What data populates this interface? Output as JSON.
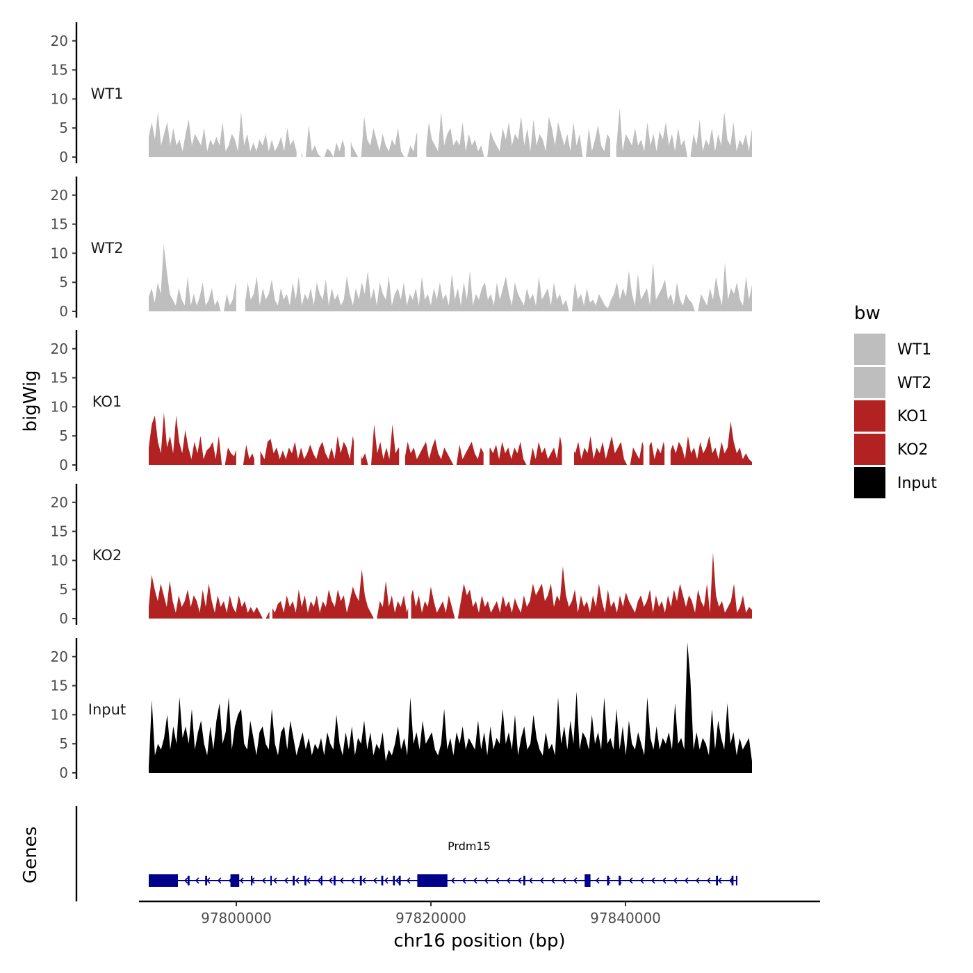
{
  "chart_data": {
    "type": "area",
    "title": "",
    "xlabel": "chr16 position (bp)",
    "ylabel": "bigWig",
    "gene_track_label": "Genes",
    "xlim": [
      97790000,
      97860000
    ],
    "x_ticks": [
      97800000,
      97820000,
      97840000
    ],
    "x_tick_labels": [
      "97800000",
      "97820000",
      "97840000"
    ],
    "ylim": [
      0,
      23
    ],
    "y_ticks": [
      0,
      5,
      10,
      15,
      20
    ],
    "y_tick_labels": [
      "0",
      "5",
      "10",
      "15",
      "20"
    ],
    "data_x_range": [
      97791000,
      97853000
    ],
    "legend": {
      "title": "bw",
      "position": "right",
      "entries": [
        {
          "label": "WT1",
          "color": "#bebebe"
        },
        {
          "label": "WT2",
          "color": "#bebebe"
        },
        {
          "label": "KO1",
          "color": "#b22222"
        },
        {
          "label": "KO2",
          "color": "#b22222"
        },
        {
          "label": "Input",
          "color": "#000000"
        }
      ]
    },
    "series": [
      {
        "name": "WT1",
        "color": "#bebebe",
        "values": [
          3.5,
          6,
          3,
          7.8,
          2,
          4,
          6,
          2,
          5,
          2,
          3,
          1,
          4,
          6.5,
          2,
          4,
          3,
          2,
          5,
          1,
          3,
          2,
          3.5,
          2,
          6,
          1,
          2,
          4,
          3,
          1,
          7.8,
          2,
          4,
          1,
          2.5,
          1,
          3,
          2,
          4,
          1,
          3,
          1,
          2,
          3.5,
          1,
          5,
          2,
          3,
          1,
          2,
          0,
          0,
          5.5,
          1,
          2,
          0.5,
          0,
          0,
          1.5,
          1,
          0,
          2.5,
          1,
          3,
          1,
          4,
          2,
          1,
          0,
          0,
          7,
          3,
          2,
          5,
          3,
          1,
          4,
          2,
          1,
          3,
          2,
          5,
          1,
          0,
          0,
          2,
          1,
          4,
          5,
          3,
          1,
          6,
          3,
          2,
          1,
          7.8,
          2,
          4,
          5,
          2,
          3,
          2,
          6,
          1,
          4,
          2,
          3,
          1,
          2,
          0,
          0,
          4.5,
          3,
          2,
          1,
          5,
          3,
          6,
          2,
          4,
          3,
          7,
          2,
          5,
          1,
          6.5,
          2,
          4,
          3,
          1,
          7,
          5,
          2,
          6,
          4,
          2,
          4,
          1,
          6,
          2,
          4,
          0,
          0,
          5,
          1,
          3,
          5.5,
          2,
          1,
          4,
          3,
          6,
          2,
          8.5,
          1,
          4,
          3,
          2,
          5,
          2,
          3,
          1,
          6,
          2,
          4,
          1,
          4.5,
          3,
          6,
          2,
          4,
          1,
          5,
          2,
          3,
          0,
          0,
          4,
          2,
          6.5,
          1,
          3,
          2,
          5,
          1,
          4,
          2,
          7.8,
          3,
          2,
          6,
          1,
          3,
          2,
          4,
          1,
          5
        ],
        "gaps": [
          [
            0.245,
            0.253
          ],
          [
            0.325,
            0.335
          ],
          [
            0.445,
            0.46
          ],
          [
            0.765,
            0.775
          ]
        ]
      },
      {
        "name": "WT2",
        "color": "#bebebe",
        "values": [
          2.5,
          4,
          1.5,
          5,
          3,
          11.5,
          7,
          3,
          2,
          1,
          4,
          2,
          1,
          6,
          1,
          3,
          1,
          2.5,
          5,
          1,
          2,
          4,
          1,
          2,
          0,
          0,
          3,
          1,
          2,
          5,
          2,
          4,
          1,
          5,
          2,
          3,
          6,
          1,
          4,
          2,
          3,
          5.5,
          2,
          1,
          4,
          2,
          3,
          1,
          5,
          2,
          6,
          1,
          3,
          2,
          4,
          1,
          5,
          3,
          2,
          5.5,
          1,
          4,
          2,
          3,
          1,
          2,
          6,
          3,
          1,
          4,
          2,
          5,
          3,
          7,
          2,
          4,
          1,
          5,
          3,
          2,
          6,
          1,
          3,
          4,
          2,
          5,
          1,
          3,
          2,
          4,
          1,
          6,
          2,
          3,
          1,
          4,
          2,
          5,
          2,
          3,
          1,
          6.5,
          2,
          4,
          1,
          5,
          2,
          7,
          1,
          3,
          2,
          4,
          5,
          2,
          3,
          1,
          5,
          2,
          4,
          6,
          3,
          1,
          5,
          3,
          2,
          1,
          4,
          2,
          3,
          1,
          6,
          2,
          3,
          4,
          1,
          5,
          2,
          3,
          1,
          2,
          0,
          0,
          5,
          2,
          3,
          1,
          4,
          1.5,
          2,
          1,
          3,
          2,
          1,
          0.5,
          2,
          3,
          5,
          2,
          4,
          2.5,
          7,
          3,
          1,
          6.5,
          2,
          3,
          4,
          1,
          8.5,
          2,
          3,
          4,
          5.5,
          2,
          3,
          1,
          5,
          2,
          1,
          3,
          2,
          1.5,
          0,
          0,
          3,
          2,
          1,
          4,
          2,
          6,
          3,
          1,
          8.5,
          2,
          4,
          3,
          5,
          2,
          1,
          6,
          2,
          4.5
        ],
        "gaps": [
          [
            0.145,
            0.16
          ]
        ]
      },
      {
        "name": "KO1",
        "color": "#b22222",
        "values": [
          3,
          7,
          8.5,
          4,
          2,
          9,
          3,
          5,
          2,
          8.5,
          4,
          2,
          6,
          3,
          1,
          4,
          2,
          5,
          1,
          2.5,
          3,
          4,
          1,
          5,
          0,
          0,
          3,
          2,
          1.5,
          3,
          0,
          0,
          3.5,
          1,
          2,
          0.5,
          3,
          2,
          1,
          4,
          4.5,
          2,
          3,
          1,
          2.5,
          1,
          3,
          2,
          4,
          1,
          3,
          1,
          2,
          3.5,
          2,
          1,
          3,
          4,
          2,
          1,
          3,
          1,
          5,
          2,
          4,
          3,
          1,
          5,
          2,
          3,
          1,
          2,
          0,
          0,
          7,
          2,
          4,
          1,
          3,
          1,
          7,
          2,
          3,
          2,
          1,
          4,
          2,
          3,
          1,
          2,
          3,
          4,
          1,
          3,
          4.5,
          2,
          1,
          3,
          2,
          1,
          0,
          0,
          3.5,
          1,
          2,
          3,
          4,
          2,
          1,
          3,
          2,
          1,
          3,
          2,
          3.5,
          1,
          4,
          2,
          3,
          1,
          3,
          2,
          4,
          1,
          0,
          0,
          3,
          1,
          4,
          2,
          3,
          1,
          2,
          3,
          1,
          5,
          2,
          4,
          1,
          3,
          2,
          4,
          1,
          3,
          2,
          5,
          1,
          3,
          2,
          4,
          1,
          3,
          5,
          2,
          3,
          4,
          1,
          0,
          0,
          3,
          2,
          1,
          4,
          2,
          3,
          4,
          1,
          3,
          2,
          4,
          1,
          2,
          3.5,
          2,
          4,
          3,
          1,
          5,
          2,
          3,
          1,
          4,
          2,
          3,
          5,
          2,
          3,
          1,
          4,
          2,
          3,
          7.5,
          4,
          2,
          3,
          1,
          2,
          1,
          0.5
        ],
        "gaps": [
          [
            0.145,
            0.155
          ],
          [
            0.175,
            0.185
          ],
          [
            0.34,
            0.352
          ],
          [
            0.415,
            0.425
          ],
          [
            0.555,
            0.565
          ],
          [
            0.685,
            0.705
          ],
          [
            0.82,
            0.83
          ],
          [
            0.855,
            0.865
          ]
        ]
      },
      {
        "name": "KO2",
        "color": "#b22222",
        "values": [
          2,
          7.5,
          5,
          3,
          6,
          4,
          2,
          6.5,
          3,
          1,
          4,
          2,
          3,
          5,
          2,
          4,
          3,
          1,
          5,
          2,
          6,
          3,
          1,
          4,
          2,
          3,
          1,
          4,
          2,
          1,
          4,
          2,
          3,
          1,
          2,
          1,
          2,
          1,
          0,
          0,
          1,
          2,
          1,
          2.5,
          3,
          1,
          4,
          2,
          3,
          1,
          5,
          2,
          4,
          1,
          3,
          2,
          4,
          1,
          3,
          2,
          5,
          3,
          2,
          5,
          3,
          4,
          1,
          3,
          5.5,
          4,
          3,
          8.5,
          4,
          2,
          1,
          0,
          0,
          3,
          2,
          6.5,
          2,
          4,
          1,
          3,
          2,
          4,
          1,
          3,
          5,
          2,
          4,
          1,
          3,
          2,
          5.5,
          3,
          1,
          2,
          3,
          1,
          4,
          2,
          0,
          0,
          3,
          6,
          4,
          5,
          2,
          3,
          1,
          4,
          2,
          3,
          1,
          2,
          3,
          1,
          4,
          2,
          3,
          1,
          3.5,
          2,
          1,
          4,
          2,
          3,
          6,
          4,
          5,
          6,
          3,
          4,
          6,
          2,
          4,
          3,
          9,
          4,
          2,
          3,
          5,
          1,
          4,
          2,
          3,
          1,
          4,
          2,
          6,
          3,
          1,
          5,
          2,
          3,
          1,
          4,
          2,
          4.5,
          3,
          2,
          1,
          3,
          4,
          2,
          3,
          5,
          1,
          4,
          2,
          3,
          1,
          4,
          2,
          5,
          3,
          6,
          4,
          2,
          4,
          3,
          1,
          5,
          3,
          2,
          6,
          1,
          11.3,
          4,
          2,
          3,
          1,
          2,
          3,
          6,
          1,
          2,
          4,
          1,
          2,
          1.5
        ],
        "gaps": [
          [
            0.2,
            0.205
          ],
          [
            0.43,
            0.435
          ]
        ]
      },
      {
        "name": "Input",
        "color": "#000000",
        "values": [
          1,
          12.5,
          3,
          5,
          4,
          6,
          10,
          4,
          8,
          5,
          13,
          6,
          8,
          5,
          11,
          4,
          7,
          9,
          5,
          3,
          8,
          4,
          9,
          12,
          5,
          7,
          13,
          4,
          8,
          10,
          11,
          5,
          4,
          9,
          6,
          3,
          7,
          8,
          5,
          4,
          11,
          5,
          3,
          7,
          8,
          4,
          9,
          6,
          3,
          5,
          7,
          4,
          6,
          3,
          5,
          4,
          6,
          3,
          7,
          5,
          4,
          10,
          5,
          3,
          7,
          4,
          8,
          3,
          6,
          5,
          9,
          4,
          7,
          3,
          5,
          4,
          7,
          2,
          4,
          3,
          5,
          8,
          4,
          6,
          3,
          13,
          5,
          7,
          4,
          9,
          5,
          6,
          7,
          4,
          3,
          5,
          11,
          4,
          6,
          3,
          7,
          5,
          8,
          4,
          6,
          5,
          4,
          9,
          4,
          7,
          3,
          8,
          4,
          6,
          5,
          11,
          5,
          7,
          4,
          10,
          3,
          6,
          8,
          4,
          5,
          10,
          6,
          4,
          3,
          7,
          4,
          5,
          3,
          13,
          5,
          8,
          4,
          9,
          5,
          14,
          4,
          7,
          6,
          4,
          10,
          5,
          7,
          4,
          13,
          5,
          6,
          4,
          11,
          4,
          8,
          3,
          9,
          5,
          4,
          7,
          5,
          3,
          13,
          6,
          4,
          8,
          4,
          6,
          5,
          7,
          4,
          12,
          5,
          6,
          4,
          22.5,
          16,
          4,
          7,
          4,
          6,
          5,
          3,
          11,
          4,
          9,
          6,
          4,
          12,
          5,
          7,
          3,
          6,
          4,
          5,
          6,
          2
        ],
        "gaps": []
      }
    ],
    "gene_track": {
      "gene_name": "Prdm15",
      "strand": "-",
      "color": "#00008b",
      "start": 97791000,
      "end": 97851500,
      "exons": [
        [
          97791000,
          97794000
        ],
        [
          97795000,
          97795200
        ],
        [
          97796800,
          97797000
        ],
        [
          97799400,
          97800300
        ],
        [
          97801500,
          97801650
        ],
        [
          97803500,
          97803650
        ],
        [
          97805800,
          97806000
        ],
        [
          97807000,
          97807200
        ],
        [
          97808700,
          97808850
        ],
        [
          97810000,
          97810200
        ],
        [
          97812700,
          97812900
        ],
        [
          97814900,
          97815100
        ],
        [
          97816100,
          97816300
        ],
        [
          97816700,
          97816900
        ],
        [
          97818600,
          97821700
        ],
        [
          97829500,
          97829700
        ],
        [
          97835800,
          97836400
        ],
        [
          97838100,
          97838300
        ],
        [
          97839300,
          97839500
        ],
        [
          97849300,
          97849500
        ],
        [
          97850900,
          97851100
        ],
        [
          97851350,
          97851500
        ]
      ]
    }
  }
}
